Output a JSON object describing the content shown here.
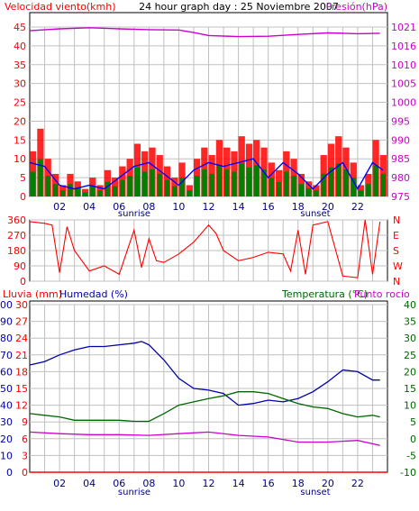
{
  "header": {
    "left_label": "Velocidad viento(kmh)",
    "center_label": "24 hour graph day : 25 Noviembre 2007",
    "right_label": "Presión(hPa)"
  },
  "x_tick_labels": [
    "02",
    "04",
    "06",
    "08",
    "10",
    "12",
    "14",
    "16",
    "18",
    "20",
    "22"
  ],
  "sun_labels": {
    "sunrise": "sunrise",
    "sunset": "sunset"
  },
  "colors": {
    "wind": "#ff0000",
    "gust": "#ff0000",
    "avg_wind": "#0000ff",
    "wind_green": "#008000",
    "pressure": "#cc00cc",
    "direction": "#ff0000",
    "humidity": "#0000aa",
    "temperature": "#006600",
    "dew_point": "#cc00cc",
    "rain": "#ff0000",
    "grid": "#c0c0c0"
  },
  "chart_data": [
    {
      "type": "bar",
      "panel": "wind",
      "ylabel_left": "Velocidad viento(kmh)",
      "ylabel_right": "Presión(hPa)",
      "x_hours": [
        0,
        24
      ],
      "ylim_left": [
        0,
        45
      ],
      "ylim_right": [
        975,
        1021
      ],
      "left_ticks": [
        "0",
        "5",
        "10",
        "15",
        "20",
        "25",
        "30",
        "35",
        "40",
        "45"
      ],
      "right_ticks": [
        "975",
        "980",
        "985",
        "990",
        "995",
        "1000",
        "1005",
        "1010",
        "1016",
        "1021"
      ],
      "series": [
        {
          "name": "Velocidad viento",
          "x": [
            0.0,
            0.5,
            1.0,
            1.5,
            2.0,
            2.5,
            3.0,
            3.5,
            4.0,
            4.5,
            5.0,
            5.5,
            6.0,
            6.5,
            7.0,
            7.5,
            8.0,
            8.5,
            9.0,
            9.5,
            10.0,
            10.5,
            11.0,
            11.5,
            12.0,
            12.5,
            13.0,
            13.5,
            14.0,
            14.5,
            15.0,
            15.5,
            16.0,
            16.5,
            17.0,
            17.5,
            18.0,
            18.5,
            19.0,
            19.5,
            20.0,
            20.5,
            21.0,
            21.5,
            22.0,
            22.5,
            23.0,
            23.5
          ],
          "values": [
            12,
            18,
            10,
            6,
            3,
            6,
            4,
            2,
            5,
            3,
            7,
            5,
            8,
            10,
            14,
            12,
            13,
            11,
            8,
            5,
            9,
            3,
            10,
            13,
            11,
            15,
            13,
            12,
            16,
            14,
            15,
            13,
            9,
            7,
            12,
            10,
            6,
            4,
            3,
            11,
            14,
            16,
            13,
            9,
            3,
            6,
            15,
            11
          ]
        },
        {
          "name": "Velocidad media",
          "x": [
            0.0,
            1.0,
            2.0,
            3.0,
            4.0,
            5.0,
            6.0,
            7.0,
            8.0,
            9.0,
            10.0,
            11.0,
            12.0,
            13.0,
            14.0,
            15.0,
            16.0,
            17.0,
            18.0,
            19.0,
            20.0,
            21.0,
            22.0,
            23.0,
            23.7
          ],
          "values": [
            9,
            8,
            3,
            2,
            3,
            2,
            5,
            8,
            9,
            6,
            3,
            7,
            9,
            8,
            9,
            10,
            5,
            9,
            6,
            2,
            6,
            9,
            2,
            9,
            7
          ]
        },
        {
          "name": "Presión",
          "x": [
            0,
            2,
            4,
            6,
            8,
            10,
            11,
            12,
            14,
            16,
            18,
            20,
            22,
            23.5
          ],
          "values": [
            1020,
            1020.5,
            1020.8,
            1020.5,
            1020.3,
            1020.2,
            1019.5,
            1018.7,
            1018.4,
            1018.5,
            1019,
            1019.4,
            1019.2,
            1019.3
          ]
        }
      ]
    },
    {
      "type": "line",
      "panel": "direction",
      "x_hours": [
        0,
        24
      ],
      "ylim": [
        0,
        360
      ],
      "left_ticks": [
        "0",
        "90",
        "180",
        "270",
        "360"
      ],
      "right_ticks": [
        "N",
        "W",
        "S",
        "E",
        "N"
      ],
      "series": [
        {
          "name": "Dirección viento",
          "x": [
            0,
            1,
            1.5,
            2,
            2.5,
            3,
            4,
            5,
            6,
            7,
            7.5,
            8,
            8.5,
            9,
            10,
            11,
            12,
            12.5,
            13,
            14,
            15,
            16,
            17,
            17.5,
            18,
            18.5,
            19,
            20,
            21,
            22,
            22.5,
            23,
            23.5
          ],
          "values": [
            350,
            340,
            330,
            50,
            320,
            180,
            60,
            90,
            40,
            300,
            80,
            250,
            120,
            110,
            160,
            230,
            330,
            280,
            180,
            120,
            140,
            170,
            160,
            60,
            300,
            40,
            330,
            350,
            30,
            20,
            360,
            40,
            350
          ]
        }
      ]
    },
    {
      "type": "line",
      "panel": "humidity_temperature",
      "ylabel_left_1": "Lluvia (mm)",
      "ylabel_left_2": "Humedad (%)",
      "ylabel_right_1": "Temperatura (°C)",
      "ylabel_right_2": "Punto rocío",
      "x_hours": [
        0,
        24
      ],
      "humidity_ticks": [
        "0",
        "10",
        "20",
        "30",
        "40",
        "50",
        "60",
        "70",
        "80",
        "90",
        "100"
      ],
      "rain_ticks": [
        "0",
        "3",
        "6",
        "9",
        "12",
        "15",
        "18",
        "21",
        "24",
        "27",
        "30"
      ],
      "temperature_ticks": [
        "-10",
        "-5",
        "0",
        "5",
        "10",
        "15",
        "20",
        "25",
        "30",
        "35",
        "40"
      ],
      "ylim_humidity": [
        0,
        100
      ],
      "ylim_temperature": [
        -10,
        40
      ],
      "series": [
        {
          "name": "Humedad",
          "x": [
            0,
            1,
            2,
            3,
            4,
            5,
            6,
            7,
            7.5,
            8,
            9,
            10,
            11,
            12,
            13,
            14,
            15,
            16,
            17,
            18,
            19,
            20,
            21,
            22,
            23,
            23.5
          ],
          "values": [
            64,
            66,
            70,
            73,
            75,
            75,
            76,
            77,
            78,
            76,
            67,
            56,
            50,
            49,
            47,
            40,
            41,
            43,
            42,
            44,
            48,
            54,
            61,
            60,
            55,
            55
          ]
        },
        {
          "name": "Temperatura",
          "x": [
            0,
            1,
            2,
            3,
            4,
            5,
            6,
            7,
            8,
            9,
            10,
            11,
            12,
            13,
            14,
            15,
            16,
            17,
            18,
            19,
            20,
            21,
            22,
            23,
            23.5
          ],
          "values": [
            7.5,
            7,
            6.5,
            5.5,
            5.5,
            5.5,
            5.5,
            5.2,
            5.2,
            7.5,
            10,
            11,
            12,
            12.8,
            14,
            14,
            13.5,
            12,
            10.5,
            9.5,
            9,
            7.5,
            6.5,
            7,
            6.5
          ]
        },
        {
          "name": "Punto rocío",
          "x": [
            0,
            2,
            4,
            6,
            8,
            10,
            12,
            14,
            16,
            18,
            20,
            22,
            23.5
          ],
          "values": [
            2,
            1.5,
            1.2,
            1.2,
            1,
            1.5,
            2,
            1,
            0.5,
            -1,
            -1,
            -0.5,
            -2
          ]
        },
        {
          "name": "Lluvia",
          "x": [
            0,
            24
          ],
          "values": [
            0,
            0
          ]
        }
      ]
    }
  ]
}
